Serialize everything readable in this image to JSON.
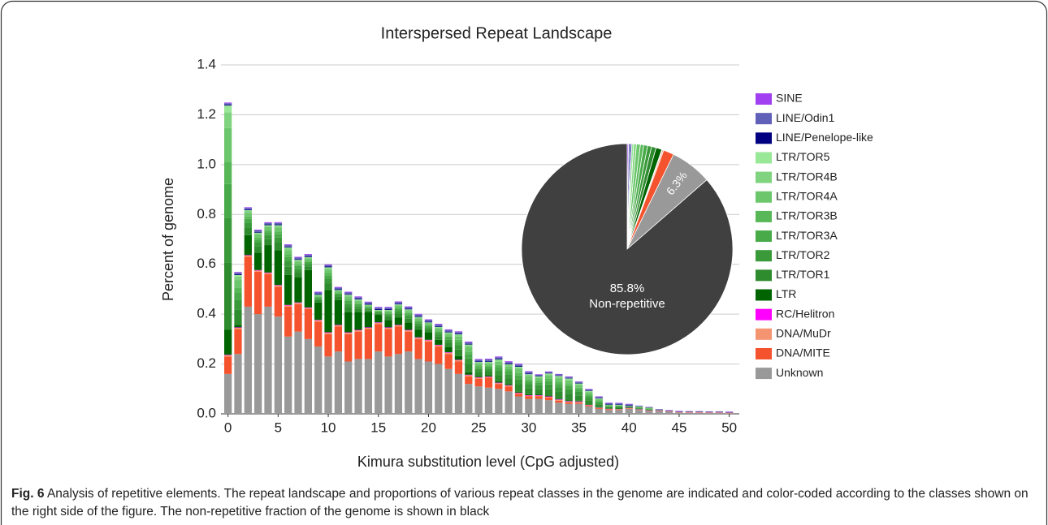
{
  "chart_data": [
    {
      "type": "bar",
      "stacked": true,
      "title": "Interspersed Repeat Landscape",
      "x_label": "Kimura substitution level (CpG adjusted)",
      "y_label": "Percent of genome",
      "x": [
        0,
        1,
        2,
        3,
        4,
        5,
        6,
        7,
        8,
        9,
        10,
        11,
        12,
        13,
        14,
        15,
        16,
        17,
        18,
        19,
        20,
        21,
        22,
        23,
        24,
        25,
        26,
        27,
        28,
        29,
        30,
        31,
        32,
        33,
        34,
        35,
        36,
        37,
        38,
        39,
        40,
        41,
        42,
        43,
        44,
        45,
        46,
        47,
        48,
        49,
        50
      ],
      "xlim": [
        -0.7,
        51
      ],
      "xticks": [
        0,
        5,
        10,
        15,
        20,
        25,
        30,
        35,
        40,
        45,
        50
      ],
      "ylim": [
        0,
        1.4
      ],
      "yticks": [
        {
          "value": 0,
          "label": "0.0"
        },
        0.2,
        0.4,
        0.6,
        0.8,
        {
          "value": 1,
          "label": "1.0"
        },
        1.2,
        1.4
      ],
      "grid": true,
      "legend": "right",
      "series": [
        {
          "name": "Unknown",
          "color": "#999999",
          "values": [
            0.16,
            0.24,
            0.43,
            0.4,
            0.43,
            0.39,
            0.31,
            0.33,
            0.3,
            0.27,
            0.23,
            0.25,
            0.21,
            0.22,
            0.22,
            0.25,
            0.23,
            0.24,
            0.25,
            0.22,
            0.21,
            0.2,
            0.18,
            0.16,
            0.12,
            0.11,
            0.105,
            0.1,
            0.09,
            0.07,
            0.06,
            0.06,
            0.055,
            0.045,
            0.04,
            0.04,
            0.03,
            0.02,
            0.015,
            0.015,
            0.02,
            0.015,
            0.01,
            0.01,
            0.008,
            0.005,
            0.004,
            0.004,
            0.003,
            0.003,
            0.002
          ]
        },
        {
          "name": "DNA/MITE",
          "color": "#f4532e",
          "values": [
            0.07,
            0.1,
            0.2,
            0.17,
            0.13,
            0.12,
            0.12,
            0.11,
            0.12,
            0.1,
            0.09,
            0.1,
            0.11,
            0.11,
            0.12,
            0.11,
            0.11,
            0.11,
            0.08,
            0.08,
            0.08,
            0.07,
            0.06,
            0.05,
            0.03,
            0.03,
            0.04,
            0.02,
            0.02,
            0.01,
            0.01,
            0.01,
            0.01,
            0.008,
            0.006,
            0.005,
            0.004,
            0.003,
            0.003,
            0.002,
            0.002,
            0.001,
            0.001,
            0.001,
            0.001,
            0.001,
            0.001,
            0.001,
            0.001,
            0.001,
            0.001
          ]
        },
        {
          "name": "DNA/MuDr",
          "color": "#f59470",
          "values": [
            0.005,
            0.005,
            0.005,
            0.005,
            0.005,
            0.005,
            0.005,
            0.005,
            0.005,
            0.005,
            0.005,
            0.005,
            0.005,
            0.005,
            0.005,
            0.005,
            0.005,
            0.005,
            0.005,
            0.005,
            0.005,
            0.005,
            0.005,
            0.005,
            0.005,
            0.005,
            0.003,
            0.003,
            0.003,
            0.003,
            0.003,
            0.003,
            0.003,
            0.003,
            0.003,
            0.003,
            0.001,
            0.001,
            0.001,
            0.001,
            0.001,
            0.001,
            0.001,
            0.001,
            0.001,
            0.001,
            0.001,
            0.001,
            0.001,
            0.001,
            0.001
          ]
        },
        {
          "name": "RC/Helitron",
          "color": "#ff00ff",
          "values": [
            0.002,
            0.002,
            0.002,
            0.002,
            0.002,
            0.002,
            0.002,
            0.002,
            0.002,
            0.002,
            0.002,
            0.002,
            0.002,
            0.002,
            0.002,
            0.002,
            0.002,
            0.002,
            0.002,
            0.002,
            0.002,
            0.002,
            0.002,
            0.002,
            0.002,
            0.002,
            0.002,
            0.002,
            0.002,
            0.002,
            0.002,
            0.002,
            0.002,
            0.002,
            0.002,
            0.002,
            0.001,
            0.001,
            0.001,
            0.001,
            0.001,
            0.001,
            0.001,
            0.001,
            0.001,
            0.001,
            0.001,
            0.001,
            0.001,
            0.001,
            0.001
          ]
        },
        {
          "name": "LTR",
          "color": "#006400",
          "values": [
            0.1,
            0.01,
            0.08,
            0.07,
            0.11,
            0.14,
            0.12,
            0.1,
            0.15,
            0.07,
            0.17,
            0.1,
            0.08,
            0.07,
            0.06,
            0.03,
            0.03,
            0.03,
            0.03,
            0.03,
            0.03,
            0.02,
            0.02,
            0.015,
            0.01,
            0.005,
            0.005,
            0.005,
            0.004,
            0.004,
            0.004,
            0.003,
            0.003,
            0.003,
            0.003,
            0.003,
            0.002,
            0.002,
            0.002,
            0.002,
            0.002,
            0.001,
            0.001,
            0.001,
            0.001,
            0.001,
            0.001,
            0.001,
            0.001,
            0.001,
            0.001
          ]
        },
        {
          "name": "LTR/TOR1",
          "color": "#2e8b2e",
          "values": [
            0.27,
            0.06,
            0.03,
            0.024,
            0.024,
            0.03,
            0.033,
            0.021,
            0.015,
            0.009,
            0.027,
            0.012,
            0.021,
            0.015,
            0.009,
            0.006,
            0.012,
            0.015,
            0.015,
            0.015,
            0.012,
            0.015,
            0.018,
            0.026,
            0.033,
            0.017,
            0.016,
            0.026,
            0.024,
            0.03,
            0.024,
            0.022,
            0.027,
            0.027,
            0.026,
            0.021,
            0.016,
            0.011,
            0.005,
            0.005,
            0.002,
            0.003,
            0.003,
            0.001,
            0,
            0,
            0,
            0,
            0,
            0,
            0
          ]
        },
        {
          "name": "LTR/TOR2",
          "color": "#3a9a3a",
          "values": [
            0.18,
            0.04,
            0.02,
            0.016,
            0.016,
            0.02,
            0.022,
            0.014,
            0.01,
            0.006,
            0.018,
            0.008,
            0.014,
            0.01,
            0.006,
            0.004,
            0.008,
            0.01,
            0.01,
            0.01,
            0.008,
            0.01,
            0.012,
            0.017,
            0.022,
            0.011,
            0.011,
            0.018,
            0.016,
            0.02,
            0.016,
            0.015,
            0.018,
            0.018,
            0.018,
            0.014,
            0.011,
            0.007,
            0.003,
            0.003,
            0.001,
            0.002,
            0.002,
            0.001,
            0,
            0,
            0,
            0,
            0,
            0,
            0
          ]
        },
        {
          "name": "LTR/TOR3A",
          "color": "#48aa48",
          "values": [
            0.135,
            0.03,
            0.015,
            0.012,
            0.012,
            0.015,
            0.017,
            0.011,
            0.008,
            0.005,
            0.014,
            0.006,
            0.011,
            0.008,
            0.005,
            0.003,
            0.006,
            0.008,
            0.008,
            0.008,
            0.006,
            0.008,
            0.009,
            0.013,
            0.017,
            0.008,
            0.008,
            0.013,
            0.012,
            0.015,
            0.012,
            0.011,
            0.013,
            0.014,
            0.013,
            0.01,
            0.008,
            0.005,
            0.002,
            0.002,
            0.001,
            0.002,
            0.002,
            0,
            0,
            0,
            0,
            0,
            0,
            0,
            0
          ]
        },
        {
          "name": "LTR/TOR3B",
          "color": "#58b858",
          "values": [
            0.09,
            0.02,
            0.01,
            0.008,
            0.008,
            0.01,
            0.011,
            0.007,
            0.005,
            0.003,
            0.009,
            0.004,
            0.007,
            0.005,
            0.003,
            0.002,
            0.004,
            0.005,
            0.005,
            0.005,
            0.004,
            0.005,
            0.006,
            0.009,
            0.011,
            0.006,
            0.005,
            0.009,
            0.008,
            0.01,
            0.008,
            0.007,
            0.009,
            0.009,
            0.009,
            0.007,
            0.005,
            0.004,
            0.002,
            0.002,
            0.001,
            0.001,
            0.001,
            0,
            0,
            0,
            0,
            0,
            0,
            0,
            0
          ]
        },
        {
          "name": "LTR/TOR4A",
          "color": "#6cc66c",
          "values": [
            0.135,
            0.03,
            0.015,
            0.012,
            0.012,
            0.015,
            0.017,
            0.011,
            0.008,
            0.005,
            0.014,
            0.006,
            0.011,
            0.008,
            0.005,
            0.003,
            0.006,
            0.008,
            0.008,
            0.008,
            0.006,
            0.008,
            0.009,
            0.013,
            0.017,
            0.008,
            0.008,
            0.013,
            0.012,
            0.015,
            0.012,
            0.011,
            0.013,
            0.014,
            0.013,
            0.01,
            0.008,
            0.005,
            0.002,
            0.002,
            0.001,
            0.002,
            0.002,
            0,
            0,
            0,
            0,
            0,
            0,
            0,
            0
          ]
        },
        {
          "name": "LTR/TOR4B",
          "color": "#80d480",
          "values": [
            0.063,
            0.014,
            0.007,
            0.006,
            0.006,
            0.007,
            0.008,
            0.005,
            0.004,
            0.002,
            0.006,
            0.003,
            0.005,
            0.004,
            0.002,
            0.001,
            0.003,
            0.004,
            0.004,
            0.004,
            0.003,
            0.004,
            0.004,
            0.006,
            0.008,
            0.004,
            0.004,
            0.006,
            0.006,
            0.007,
            0.006,
            0.005,
            0.006,
            0.006,
            0.006,
            0.005,
            0.004,
            0.002,
            0.001,
            0.001,
            0,
            0.001,
            0.001,
            0,
            0,
            0,
            0,
            0,
            0,
            0,
            0
          ]
        },
        {
          "name": "LTR/TOR5",
          "color": "#98e898",
          "values": [
            0.027,
            0.006,
            0.003,
            0.002,
            0.002,
            0.003,
            0.003,
            0.002,
            0.002,
            0.001,
            0.003,
            0.001,
            0.002,
            0.002,
            0.001,
            0.001,
            0.001,
            0.002,
            0.002,
            0.002,
            0.001,
            0.002,
            0.002,
            0.003,
            0.003,
            0.002,
            0.002,
            0.003,
            0.002,
            0.003,
            0.002,
            0.002,
            0.003,
            0.003,
            0.003,
            0.002,
            0.002,
            0.001,
            0,
            0,
            0,
            0,
            0,
            0,
            0,
            0,
            0,
            0,
            0,
            0,
            0
          ]
        },
        {
          "name": "LINE/Penelope-like",
          "color": "#000080",
          "values": [
            0.003,
            0.003,
            0.003,
            0.003,
            0.003,
            0.003,
            0.003,
            0.003,
            0.003,
            0.003,
            0.003,
            0.003,
            0.003,
            0.003,
            0.003,
            0.003,
            0.003,
            0.003,
            0.003,
            0.003,
            0.003,
            0.003,
            0.003,
            0.003,
            0.003,
            0.003,
            0.003,
            0.003,
            0.003,
            0.003,
            0.003,
            0.002,
            0.002,
            0.002,
            0.002,
            0.002,
            0.002,
            0.002,
            0.002,
            0.002,
            0.002,
            0.001,
            0.001,
            0.001,
            0.001,
            0.001,
            0.001,
            0.001,
            0.001,
            0.001,
            0.001
          ]
        },
        {
          "name": "LINE/Odin1",
          "color": "#6060b8",
          "values": [
            0.006,
            0.006,
            0.006,
            0.006,
            0.006,
            0.006,
            0.006,
            0.006,
            0.006,
            0.006,
            0.006,
            0.006,
            0.006,
            0.006,
            0.006,
            0.006,
            0.006,
            0.006,
            0.006,
            0.006,
            0.006,
            0.006,
            0.006,
            0.006,
            0.006,
            0.006,
            0.006,
            0.006,
            0.006,
            0.006,
            0.006,
            0.004,
            0.004,
            0.004,
            0.004,
            0.004,
            0.004,
            0.004,
            0.004,
            0.004,
            0.004,
            0.001,
            0.001,
            0.001,
            0.001,
            0.001,
            0.001,
            0.001,
            0.001,
            0.001,
            0.001
          ]
        },
        {
          "name": "SINE",
          "color": "#a040f0",
          "values": [
            0.003,
            0.003,
            0.003,
            0.003,
            0.003,
            0.003,
            0.003,
            0.003,
            0.003,
            0.003,
            0.003,
            0.003,
            0.003,
            0.003,
            0.003,
            0.003,
            0.003,
            0.003,
            0.003,
            0.003,
            0.003,
            0.003,
            0.003,
            0.003,
            0.003,
            0.003,
            0.003,
            0.003,
            0.003,
            0.003,
            0.003,
            0.002,
            0.002,
            0.002,
            0.002,
            0.002,
            0.002,
            0.002,
            0.002,
            0.002,
            0.002,
            0.001,
            0.001,
            0.001,
            0.001,
            0.001,
            0.001,
            0.001,
            0.001,
            0.001,
            0.001
          ]
        }
      ]
    },
    {
      "type": "pie",
      "categories": [
        null,
        null,
        null,
        null,
        null,
        null,
        null,
        null,
        null,
        null,
        null,
        null,
        null,
        null,
        null,
        "Non-repetitive"
      ],
      "values": [
        0.2,
        0.3,
        0.2,
        0.3,
        0.4,
        0.6,
        0.5,
        0.6,
        0.6,
        0.7,
        0.9,
        0.1,
        0.2,
        1.6,
        6.3,
        85.8
      ],
      "value_labels": [
        null,
        null,
        null,
        null,
        null,
        null,
        null,
        null,
        null,
        null,
        null,
        null,
        null,
        null,
        "6.3%",
        "85.8%"
      ],
      "colors": [
        "#a040f0",
        "#6060b8",
        "#000080",
        "#98e898",
        "#80d480",
        "#6cc66c",
        "#58b858",
        "#48aa48",
        "#3a9a3a",
        "#2e8b2e",
        "#006400",
        "#ff00ff",
        "#f59470",
        "#f4532e",
        "#999999",
        "#404040"
      ]
    }
  ],
  "caption": {
    "label": "Fig. 6",
    "text": "Analysis of repetitive elements. The repeat landscape and proportions of various repeat classes in the genome are indicated and color-coded according to the classes shown on the right side of the figure. The non-repetitive fraction of the genome is shown in black"
  }
}
